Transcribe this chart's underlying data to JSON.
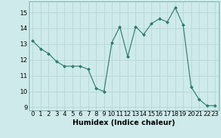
{
  "x": [
    0,
    1,
    2,
    3,
    4,
    5,
    6,
    7,
    8,
    9,
    10,
    11,
    12,
    13,
    14,
    15,
    16,
    17,
    18,
    19,
    20,
    21,
    22,
    23
  ],
  "y": [
    13.2,
    12.7,
    12.4,
    11.9,
    11.6,
    11.6,
    11.6,
    11.4,
    10.2,
    10.0,
    13.1,
    14.1,
    12.2,
    14.1,
    13.6,
    14.3,
    14.6,
    14.4,
    15.3,
    14.2,
    10.3,
    9.5,
    9.1,
    9.1
  ],
  "line_color": "#2e7d6e",
  "marker": "D",
  "marker_size": 2.2,
  "bg_color": "#ceeaea",
  "grid_color": "#b8d8d8",
  "xlabel": "Humidex (Indice chaleur)",
  "xlim": [
    -0.5,
    23.5
  ],
  "ylim": [
    8.8,
    15.7
  ],
  "yticks": [
    9,
    10,
    11,
    12,
    13,
    14,
    15
  ],
  "xtick_labels": [
    "0",
    "1",
    "2",
    "3",
    "4",
    "5",
    "6",
    "7",
    "8",
    "9",
    "10",
    "11",
    "12",
    "13",
    "14",
    "15",
    "16",
    "17",
    "18",
    "19",
    "20",
    "21",
    "22",
    "23"
  ],
  "xlabel_fontsize": 7.5,
  "tick_fontsize": 6.5
}
